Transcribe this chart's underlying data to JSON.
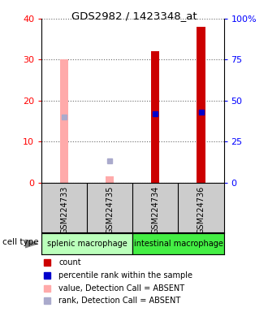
{
  "title": "GDS2982 / 1423348_at",
  "samples": [
    "GSM224733",
    "GSM224735",
    "GSM224734",
    "GSM224736"
  ],
  "count_values": [
    null,
    null,
    32,
    38
  ],
  "rank_values": [
    null,
    null,
    42,
    43
  ],
  "absent_count_values": [
    30,
    1.5,
    null,
    null
  ],
  "absent_rank_values": [
    40,
    13,
    null,
    null
  ],
  "bar_color_present": "#cc0000",
  "bar_color_absent": "#ffaaaa",
  "rank_color_present": "#0000cc",
  "rank_color_absent": "#aaaacc",
  "ylim_left": [
    0,
    40
  ],
  "ylim_right": [
    0,
    100
  ],
  "yticks_left": [
    0,
    10,
    20,
    30,
    40
  ],
  "ytick_labels_left": [
    "0",
    "10",
    "20",
    "30",
    "40"
  ],
  "yticks_right": [
    0,
    25,
    50,
    75,
    100
  ],
  "ytick_labels_right": [
    "0",
    "25",
    "50",
    "75",
    "100%"
  ],
  "cell_type_groups": [
    {
      "label": "splenic macrophage",
      "indices": [
        0,
        1
      ],
      "color": "#bbffbb"
    },
    {
      "label": "intestinal macrophage",
      "indices": [
        2,
        3
      ],
      "color": "#44ee44"
    }
  ],
  "bar_width": 0.18,
  "rank_marker_size": 4,
  "bg_color": "#ffffff",
  "label_area_bg": "#cccccc",
  "legend_items": [
    {
      "label": "count",
      "color": "#cc0000"
    },
    {
      "label": "percentile rank within the sample",
      "color": "#0000cc"
    },
    {
      "label": "value, Detection Call = ABSENT",
      "color": "#ffaaaa"
    },
    {
      "label": "rank, Detection Call = ABSENT",
      "color": "#aaaacc"
    }
  ]
}
